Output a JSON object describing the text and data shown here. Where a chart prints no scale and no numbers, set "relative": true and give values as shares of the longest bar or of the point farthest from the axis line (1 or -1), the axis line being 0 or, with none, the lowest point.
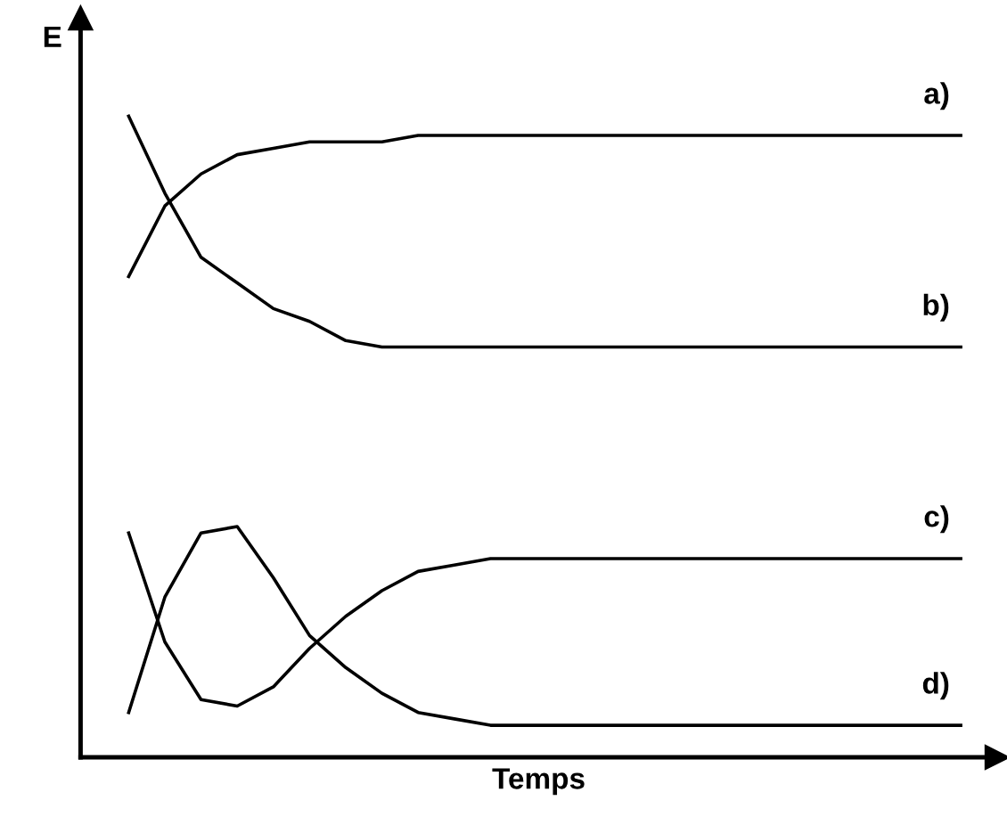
{
  "chart_data": {
    "type": "line",
    "xlabel": "Temps",
    "ylabel": "E",
    "relative": true,
    "tick_labels": false,
    "grid": false,
    "legend": false,
    "marker": "none",
    "line_style": "solid",
    "categories": [
      null,
      null,
      null,
      null,
      null,
      null,
      null,
      null,
      null,
      null,
      null,
      null,
      null,
      null,
      null,
      null,
      null,
      null,
      null,
      null,
      null,
      null,
      null,
      null
    ],
    "series": [
      {
        "name": "a)",
        "color": "#000000",
        "values": [
          0.75,
          0.86,
          0.91,
          0.94,
          0.95,
          0.96,
          0.96,
          0.96,
          0.97,
          0.97,
          0.97,
          0.97,
          0.97,
          0.97,
          0.97,
          0.97,
          0.97,
          0.97,
          0.97,
          0.97,
          0.97,
          0.97,
          0.97,
          0.97
        ]
      },
      {
        "name": "b)",
        "color": "#000000",
        "values": [
          1.0,
          0.88,
          0.78,
          0.74,
          0.7,
          0.68,
          0.65,
          0.64,
          0.64,
          0.64,
          0.64,
          0.64,
          0.64,
          0.64,
          0.64,
          0.64,
          0.64,
          0.64,
          0.64,
          0.64,
          0.64,
          0.64,
          0.64,
          0.64
        ]
      },
      {
        "name": "c)",
        "color": "#000000",
        "values": [
          0.35,
          0.18,
          0.09,
          0.08,
          0.11,
          0.17,
          0.22,
          0.26,
          0.29,
          0.3,
          0.31,
          0.31,
          0.31,
          0.31,
          0.31,
          0.31,
          0.31,
          0.31,
          0.31,
          0.31,
          0.31,
          0.31,
          0.31,
          0.31
        ]
      },
      {
        "name": "d)",
        "color": "#000000",
        "values": [
          0.07,
          0.25,
          0.35,
          0.36,
          0.28,
          0.19,
          0.14,
          0.1,
          0.07,
          0.06,
          0.05,
          0.05,
          0.05,
          0.05,
          0.05,
          0.05,
          0.05,
          0.05,
          0.05,
          0.05,
          0.05,
          0.05,
          0.05,
          0.05
        ]
      }
    ]
  }
}
